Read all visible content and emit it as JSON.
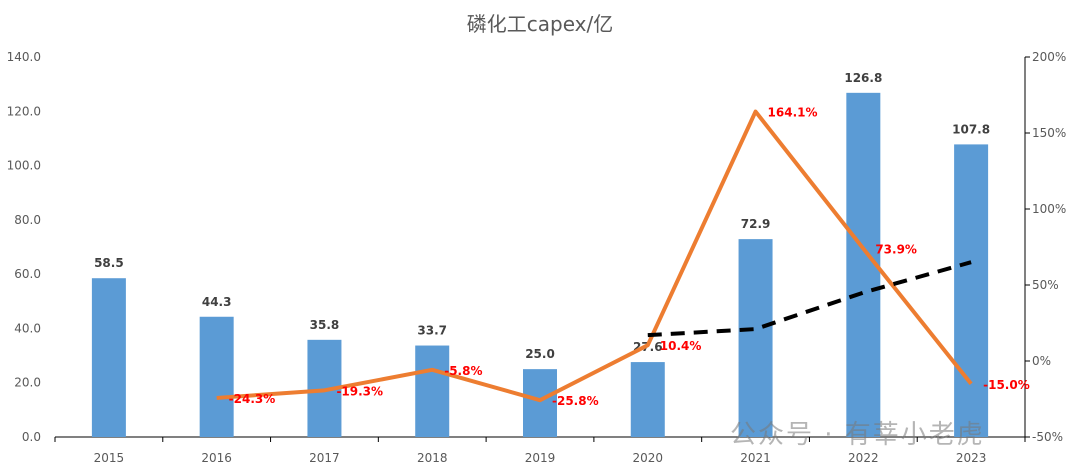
{
  "chart_data": {
    "type": "bar",
    "title": "磷化工capex/亿",
    "categories": [
      "2015",
      "2016",
      "2017",
      "2018",
      "2019",
      "2020",
      "2021",
      "2022",
      "2023"
    ],
    "series": [
      {
        "type": "bar",
        "axis": "left",
        "color": "#5b9bd5",
        "values": [
          58.5,
          44.3,
          35.8,
          33.7,
          25.0,
          27.6,
          72.9,
          126.8,
          107.8
        ],
        "labels": [
          "58.5",
          "44.3",
          "35.8",
          "33.7",
          "25.0",
          "27.6",
          "72.9",
          "126.8",
          "107.8"
        ]
      },
      {
        "type": "line",
        "axis": "right",
        "color": "#ed7d31",
        "values": [
          null,
          -24.3,
          -19.3,
          -5.8,
          -25.8,
          10.4,
          164.1,
          73.9,
          -15.0
        ],
        "labels": [
          "",
          "-24.3%",
          "-19.3%",
          "-5.8%",
          "-25.8%",
          "10.4%",
          "164.1%",
          "73.9%",
          "-15.0%"
        ]
      },
      {
        "type": "line",
        "axis": "right",
        "style": "dashed",
        "color": "#000000",
        "values": [
          null,
          null,
          null,
          null,
          null,
          17,
          21,
          45,
          65
        ]
      }
    ],
    "ylim_left": [
      0,
      140
    ],
    "yticks_left": [
      "0.0",
      "20.0",
      "40.0",
      "60.0",
      "80.0",
      "100.0",
      "120.0",
      "140.0"
    ],
    "ylim_right": [
      -50,
      200
    ],
    "yticks_right": [
      "-50%",
      "0%",
      "50%",
      "100%",
      "150%",
      "200%"
    ],
    "grid": false,
    "legend": "none"
  },
  "watermark": "公众号 · 有莘小老虎"
}
